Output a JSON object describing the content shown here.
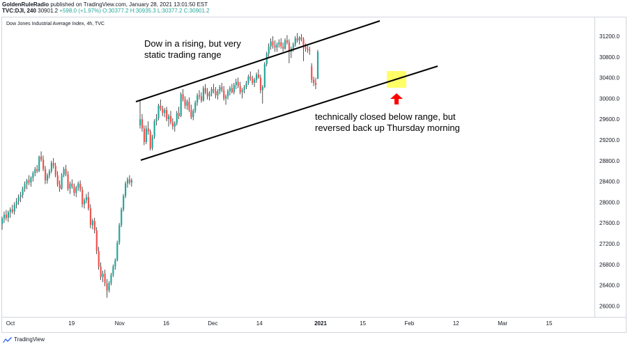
{
  "header": {
    "publisher": "GoldenRuleRadio",
    "published_text": "published on TradingView.com, January 28, 2021 13:01:50 EST",
    "symbol": "TVC:DJI, 240",
    "last": "30901.2",
    "change": "+598.0 (+1.97%)",
    "ohlc": "O:30377.2  H:30935.3  L:30377.2  C:30901.2"
  },
  "series_title": "Dow Jones Industrial Average Index, 4h, TVC",
  "annotations": {
    "range_note": [
      "Dow in a rising, but very",
      "static trading range"
    ],
    "close_note": [
      "technically closed below range, but",
      "reversed back up Thursday morning"
    ]
  },
  "footer": {
    "brand": "TradingView"
  },
  "colors": {
    "up": "#26a69a",
    "down": "#ef5350",
    "channel": "#000000",
    "highlight": "#ffff66",
    "arrow": "#ff0000"
  },
  "chart_data": {
    "type": "candlestick",
    "ylim": [
      25800,
      31600
    ],
    "y_ticks": [
      26000.0,
      26400.0,
      26800.0,
      27200.0,
      27600.0,
      28000.0,
      28400.0,
      28800.0,
      29200.0,
      29600.0,
      30000.0,
      30400.0,
      30800.0,
      31200.0
    ],
    "x_ticks": [
      "Oct",
      "19",
      "Nov",
      "16",
      "Dec",
      "14",
      "2021",
      "15",
      "Feb",
      "12",
      "Mar",
      "15"
    ],
    "bar_count": 265,
    "x_tick_bar_index": [
      0,
      42,
      75,
      107,
      139,
      171,
      213,
      242,
      274,
      306,
      338,
      370
    ],
    "candles": [
      [
        27580,
        27720,
        27470,
        27690
      ],
      [
        27690,
        27820,
        27600,
        27760
      ],
      [
        27760,
        27850,
        27650,
        27700
      ],
      [
        27700,
        27840,
        27620,
        27810
      ],
      [
        27810,
        27900,
        27700,
        27860
      ],
      [
        27860,
        27950,
        27780,
        27820
      ],
      [
        27820,
        28000,
        27760,
        27950
      ],
      [
        27950,
        28080,
        27880,
        28020
      ],
      [
        28020,
        28150,
        27950,
        28100
      ],
      [
        28100,
        28200,
        28000,
        28140
      ],
      [
        28140,
        28300,
        28080,
        28260
      ],
      [
        28260,
        28400,
        28200,
        28350
      ],
      [
        28350,
        28450,
        28250,
        28420
      ],
      [
        28420,
        28520,
        28330,
        28380
      ],
      [
        28380,
        28500,
        28300,
        28470
      ],
      [
        28470,
        28600,
        28400,
        28560
      ],
      [
        28560,
        28680,
        28500,
        28640
      ],
      [
        28640,
        28720,
        28560,
        28600
      ],
      [
        28600,
        28900,
        28580,
        28880
      ],
      [
        28880,
        28980,
        28780,
        28820
      ],
      [
        28820,
        28900,
        28600,
        28640
      ],
      [
        28640,
        28700,
        28350,
        28420
      ],
      [
        28420,
        28560,
        28360,
        28520
      ],
      [
        28520,
        28640,
        28460,
        28600
      ],
      [
        28600,
        28800,
        28560,
        28760
      ],
      [
        28760,
        28850,
        28650,
        28700
      ],
      [
        28700,
        28760,
        28480,
        28520
      ],
      [
        28520,
        28600,
        28300,
        28340
      ],
      [
        28340,
        28420,
        28200,
        28260
      ],
      [
        28260,
        28560,
        28240,
        28520
      ],
      [
        28520,
        28680,
        28480,
        28640
      ],
      [
        28640,
        28720,
        28500,
        28540
      ],
      [
        28540,
        28600,
        28220,
        28260
      ],
      [
        28260,
        28400,
        28160,
        28360
      ],
      [
        28360,
        28440,
        28260,
        28300
      ],
      [
        28300,
        28360,
        28120,
        28180
      ],
      [
        28180,
        28320,
        28100,
        28280
      ],
      [
        28280,
        28400,
        28220,
        28360
      ],
      [
        28360,
        28420,
        28200,
        28240
      ],
      [
        28240,
        28300,
        27900,
        27960
      ],
      [
        27960,
        28080,
        27880,
        28040
      ],
      [
        28040,
        28160,
        27980,
        28100
      ],
      [
        28100,
        28200,
        27840,
        27880
      ],
      [
        27880,
        27960,
        27500,
        27560
      ],
      [
        27560,
        27680,
        27480,
        27640
      ],
      [
        27640,
        27700,
        27400,
        27460
      ],
      [
        27460,
        27520,
        27000,
        27060
      ],
      [
        27060,
        27140,
        26700,
        26760
      ],
      [
        26760,
        26840,
        26500,
        26560
      ],
      [
        26560,
        26680,
        26460,
        26620
      ],
      [
        26620,
        26700,
        26380,
        26440
      ],
      [
        26440,
        26520,
        26160,
        26300
      ],
      [
        26300,
        26480,
        26260,
        26440
      ],
      [
        26440,
        26640,
        26400,
        26600
      ],
      [
        26600,
        26800,
        26560,
        26760
      ],
      [
        26760,
        26920,
        26700,
        26880
      ],
      [
        26880,
        27260,
        26860,
        27220
      ],
      [
        27220,
        27600,
        27180,
        27560
      ],
      [
        27560,
        27900,
        27520,
        27860
      ],
      [
        27860,
        28160,
        27820,
        28120
      ],
      [
        28120,
        28400,
        28080,
        28360
      ],
      [
        28360,
        28480,
        28280,
        28440
      ],
      [
        28440,
        28520,
        28340,
        28380
      ],
      [
        28380,
        28460,
        28300,
        28420
      ],
      [
        29480,
        29980,
        29420,
        29600
      ],
      [
        29600,
        29700,
        29360,
        29420
      ],
      [
        29420,
        29480,
        29100,
        29160
      ],
      [
        29160,
        29480,
        29120,
        29420
      ],
      [
        29420,
        29560,
        29300,
        29360
      ],
      [
        29360,
        29400,
        29000,
        29040
      ],
      [
        29040,
        29300,
        29000,
        29260
      ],
      [
        29260,
        29600,
        29220,
        29560
      ],
      [
        29560,
        29700,
        29480,
        29620
      ],
      [
        29620,
        29900,
        29580,
        29860
      ],
      [
        29860,
        29980,
        29760,
        29800
      ],
      [
        29800,
        29860,
        29660,
        29720
      ],
      [
        29720,
        29820,
        29640,
        29780
      ],
      [
        29780,
        29840,
        29560,
        29600
      ],
      [
        29600,
        29700,
        29460,
        29660
      ],
      [
        29660,
        29760,
        29500,
        29540
      ],
      [
        29540,
        29620,
        29400,
        29460
      ],
      [
        29460,
        29560,
        29360,
        29520
      ],
      [
        29520,
        29760,
        29480,
        29720
      ],
      [
        29720,
        29840,
        29600,
        29660
      ],
      [
        29660,
        30120,
        29640,
        30080
      ],
      [
        30080,
        30180,
        29940,
        29980
      ],
      [
        29980,
        30040,
        29800,
        29860
      ],
      [
        29860,
        29980,
        29780,
        29940
      ],
      [
        29940,
        30020,
        29740,
        29780
      ],
      [
        29780,
        29880,
        29600,
        29640
      ],
      [
        29640,
        29800,
        29580,
        29760
      ],
      [
        29760,
        29960,
        29720,
        29920
      ],
      [
        29920,
        30100,
        29860,
        30060
      ],
      [
        30060,
        30160,
        29980,
        30040
      ],
      [
        30040,
        30120,
        29920,
        29960
      ],
      [
        29960,
        30240,
        29940,
        30200
      ],
      [
        30200,
        30280,
        30080,
        30120
      ],
      [
        30120,
        30200,
        29980,
        30040
      ],
      [
        30040,
        30140,
        29960,
        30100
      ],
      [
        30100,
        30220,
        30040,
        30180
      ],
      [
        30180,
        30280,
        30100,
        30140
      ],
      [
        30140,
        30220,
        30000,
        30060
      ],
      [
        30060,
        30180,
        29980,
        30140
      ],
      [
        30140,
        30260,
        30080,
        30220
      ],
      [
        30220,
        30300,
        30120,
        30160
      ],
      [
        30160,
        30240,
        29960,
        30000
      ],
      [
        30000,
        30080,
        29880,
        30040
      ],
      [
        30040,
        30180,
        29980,
        30140
      ],
      [
        30140,
        30240,
        30060,
        30200
      ],
      [
        30200,
        30280,
        30100,
        30120
      ],
      [
        30120,
        30300,
        30080,
        30260
      ],
      [
        30260,
        30380,
        30180,
        30320
      ],
      [
        30320,
        30400,
        30200,
        30240
      ],
      [
        30240,
        30320,
        30080,
        30120
      ],
      [
        30120,
        30200,
        30000,
        30160
      ],
      [
        30160,
        30260,
        30100,
        30220
      ],
      [
        30220,
        30340,
        30180,
        30300
      ],
      [
        30300,
        30460,
        30260,
        30420
      ],
      [
        30420,
        30520,
        30340,
        30380
      ],
      [
        30380,
        30440,
        30260,
        30300
      ],
      [
        30300,
        30400,
        30220,
        30360
      ],
      [
        30360,
        30500,
        30300,
        30460
      ],
      [
        30460,
        30560,
        30380,
        30400
      ],
      [
        30400,
        30460,
        30100,
        30160
      ],
      [
        30160,
        30260,
        29900,
        30220
      ],
      [
        30220,
        30700,
        30200,
        30660
      ],
      [
        30660,
        30900,
        30620,
        30860
      ],
      [
        30860,
        31060,
        30800,
        31000
      ],
      [
        31000,
        31160,
        30940,
        31100
      ],
      [
        31100,
        31200,
        30960,
        31020
      ],
      [
        31020,
        31120,
        30900,
        30980
      ],
      [
        30980,
        31080,
        30900,
        31040
      ],
      [
        31040,
        31140,
        30980,
        31080
      ],
      [
        31080,
        31160,
        30960,
        31000
      ],
      [
        31000,
        31080,
        30900,
        30960
      ],
      [
        30960,
        31160,
        30940,
        31120
      ],
      [
        31120,
        31220,
        31040,
        31080
      ],
      [
        31080,
        31140,
        30680,
        30900
      ],
      [
        30900,
        31000,
        30780,
        30960
      ],
      [
        30960,
        31080,
        30900,
        31040
      ],
      [
        31040,
        31200,
        31000,
        31160
      ],
      [
        31160,
        31260,
        31080,
        31120
      ],
      [
        31120,
        31200,
        31040,
        31180
      ],
      [
        31180,
        31240,
        31100,
        31140
      ],
      [
        31140,
        31180,
        30720,
        31000
      ],
      [
        31000,
        31060,
        30900,
        30960
      ],
      [
        30960,
        31020,
        30880,
        30940
      ],
      [
        30940,
        31000,
        30840,
        30920
      ],
      [
        30620,
        30680,
        30300,
        30360
      ],
      [
        30360,
        30420,
        30240,
        30300
      ],
      [
        30300,
        30400,
        30180,
        30260
      ],
      [
        30377,
        30935,
        30377,
        30901
      ]
    ]
  }
}
